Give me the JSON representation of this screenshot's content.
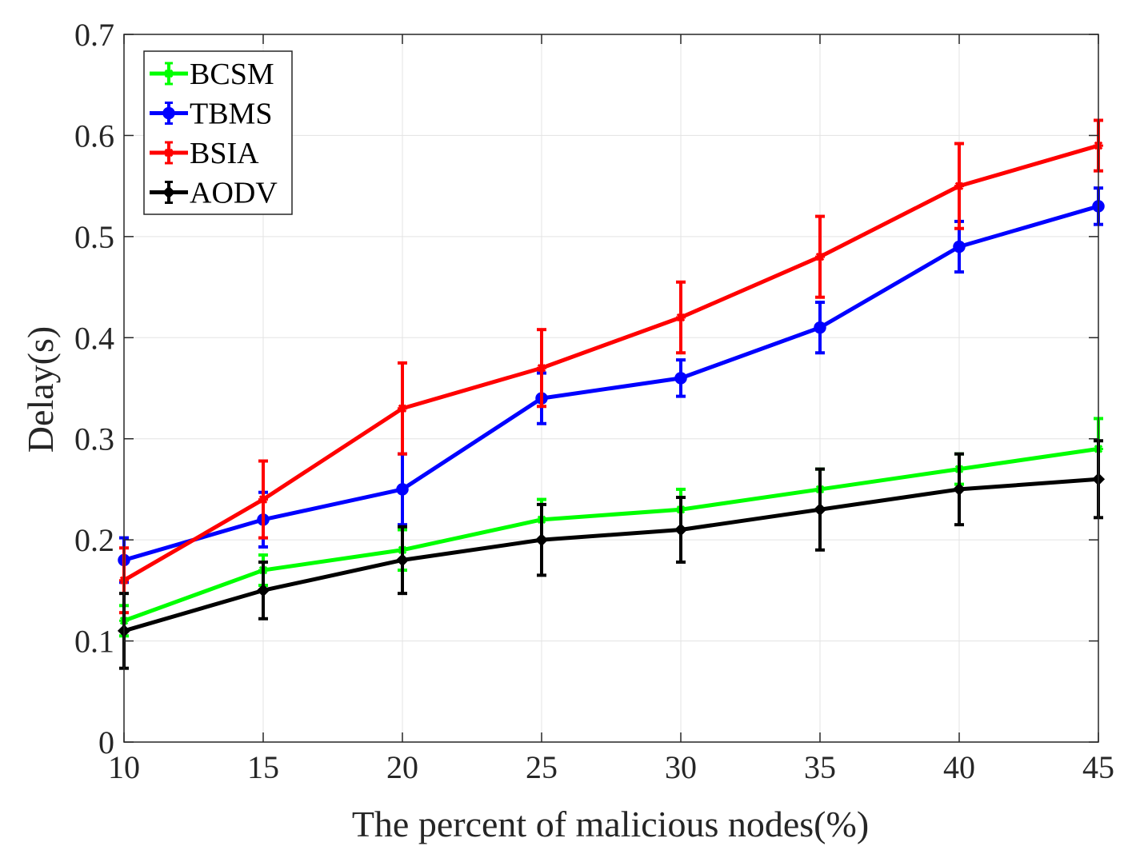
{
  "chart_data": {
    "type": "line",
    "title": "",
    "xlabel": "The percent of malicious nodes(%)",
    "ylabel": "Delay(s)",
    "x": [
      10,
      15,
      20,
      25,
      30,
      35,
      40,
      45
    ],
    "xlim": [
      10,
      45
    ],
    "ylim": [
      0,
      0.7
    ],
    "xticks": [
      "10",
      "15",
      "20",
      "25",
      "30",
      "35",
      "40",
      "45"
    ],
    "yticks": [
      "0",
      "0.1",
      "0.2",
      "0.3",
      "0.4",
      "0.5",
      "0.6",
      "0.7"
    ],
    "xtick_values": [
      10,
      15,
      20,
      25,
      30,
      35,
      40,
      45
    ],
    "ytick_values": [
      0,
      0.1,
      0.2,
      0.3,
      0.4,
      0.5,
      0.6,
      0.7
    ],
    "grid": true,
    "legend_position": "top-left",
    "series": [
      {
        "name": "BCSM",
        "color": "#00ff00",
        "marker": "star",
        "values": [
          0.12,
          0.17,
          0.19,
          0.22,
          0.23,
          0.25,
          0.27,
          0.29
        ],
        "errors": [
          0.015,
          0.015,
          0.02,
          0.02,
          0.02,
          0.02,
          0.015,
          0.03
        ]
      },
      {
        "name": "TBMS",
        "color": "#0000ff",
        "marker": "circle",
        "values": [
          0.18,
          0.22,
          0.25,
          0.34,
          0.36,
          0.41,
          0.49,
          0.53
        ],
        "errors": [
          0.022,
          0.027,
          0.035,
          0.025,
          0.018,
          0.025,
          0.025,
          0.018
        ]
      },
      {
        "name": "BSIA",
        "color": "#ff0000",
        "marker": "star",
        "values": [
          0.16,
          0.24,
          0.33,
          0.37,
          0.42,
          0.48,
          0.55,
          0.59
        ],
        "errors": [
          0.032,
          0.038,
          0.045,
          0.038,
          0.035,
          0.04,
          0.042,
          0.025
        ]
      },
      {
        "name": "AODV",
        "color": "#000000",
        "marker": "diamond",
        "values": [
          0.11,
          0.15,
          0.18,
          0.2,
          0.21,
          0.23,
          0.25,
          0.26
        ],
        "errors": [
          0.037,
          0.028,
          0.033,
          0.035,
          0.032,
          0.04,
          0.035,
          0.038
        ]
      }
    ]
  }
}
